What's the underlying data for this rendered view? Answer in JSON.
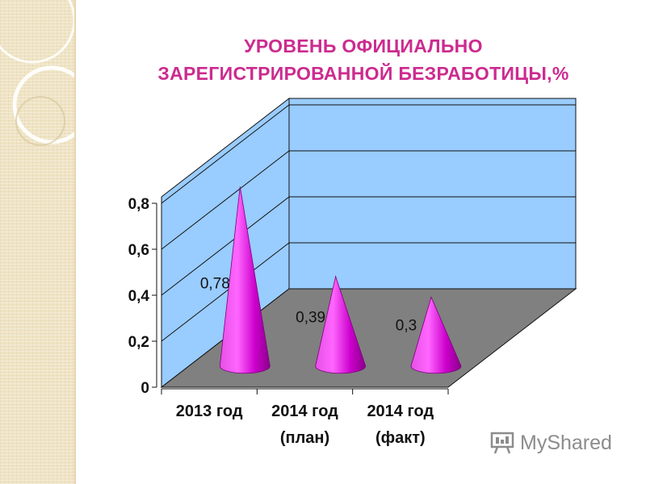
{
  "slide": {
    "title_line1": "УРОВЕНЬ ОФИЦИАЛЬНО",
    "title_line2": "ЗАРЕГИСТРИРОВАННОЙ БЕЗРАБОТИЦЫ,%",
    "title_color": "#cc2b8f",
    "watermark": "MyShared"
  },
  "chart_data": {
    "type": "bar",
    "style": "3d-cone",
    "title": "УРОВЕНЬ ОФИЦИАЛЬНО ЗАРЕГИСТРИРОВАННОЙ БЕЗРАБОТИЦЫ,%",
    "categories": [
      [
        "2013 год"
      ],
      [
        "2014 год",
        "(план)"
      ],
      [
        "2014 год",
        "(факт)"
      ]
    ],
    "values": [
      0.78,
      0.39,
      0.3
    ],
    "data_labels": [
      "0,78",
      "0,39",
      "0,3"
    ],
    "y_ticks": [
      "0",
      "0,2",
      "0,4",
      "0,6",
      "0,8"
    ],
    "ylim": [
      0,
      0.8
    ],
    "grid": true,
    "colors": {
      "cone": "#cc00cc",
      "walls": "#99ccff",
      "floor": "#808080"
    }
  }
}
